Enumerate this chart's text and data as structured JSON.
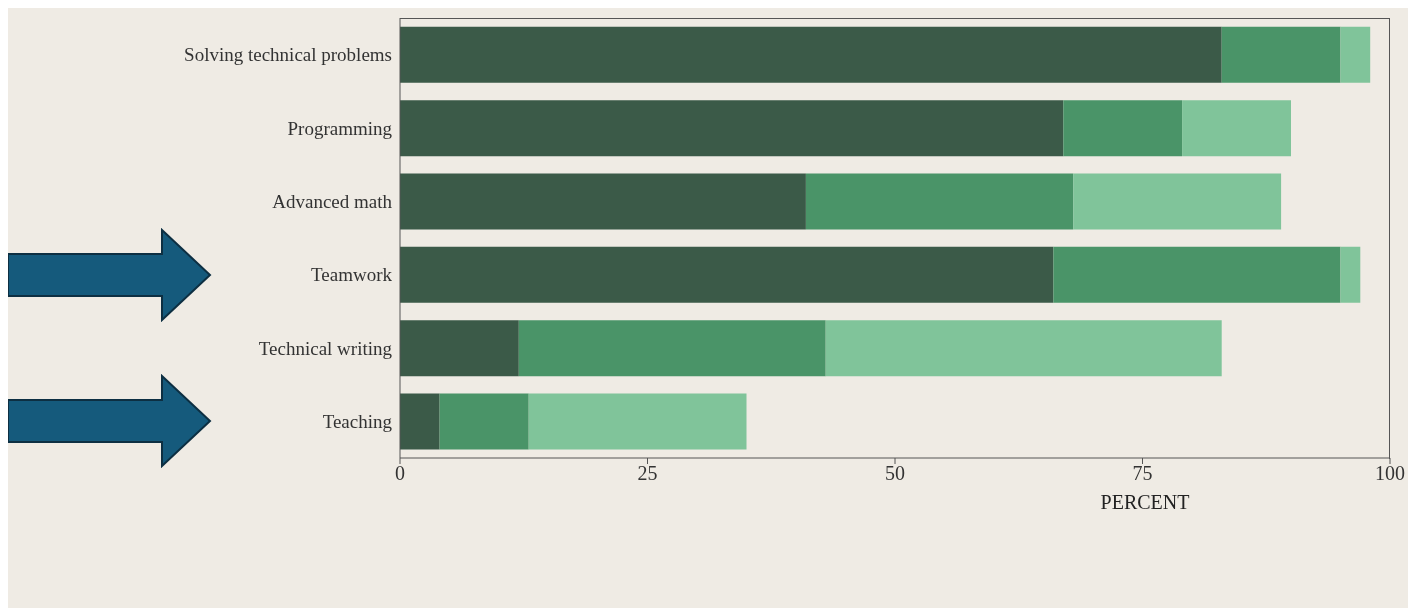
{
  "chart_data": {
    "type": "bar",
    "orientation": "horizontal",
    "stacked": true,
    "xlabel": "PERCENT",
    "categories": [
      "Solving technical problems",
      "Programming",
      "Advanced math",
      "Teamwork",
      "Technical writing",
      "Teaching"
    ],
    "series": [
      {
        "color": "#3b5a48",
        "values": [
          83,
          67,
          41,
          66,
          12,
          4
        ]
      },
      {
        "color": "#4a9468",
        "values": [
          12,
          12,
          27,
          29,
          31,
          9
        ]
      },
      {
        "color": "#80c49a",
        "values": [
          3,
          11,
          21,
          2,
          40,
          22
        ]
      }
    ],
    "xlim": [
      0,
      100
    ],
    "xticks": [
      0,
      25,
      50,
      75,
      100
    ]
  }
}
